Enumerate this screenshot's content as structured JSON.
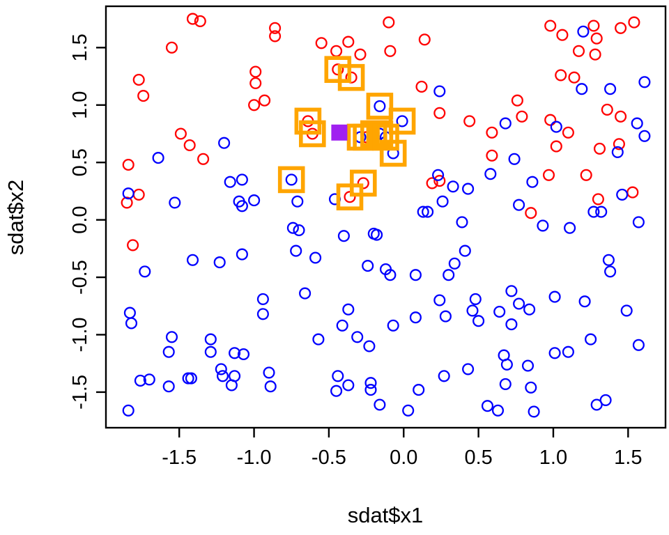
{
  "figure": {
    "background": "#ffffff",
    "description": "R scatter plot of two classes with k-nearest-neighbour highlight squares around a query point"
  },
  "colors": {
    "class_red": "#ff0000",
    "class_blue": "#0000ff",
    "neighbor_highlight": "#ffa500",
    "query_point": "#a020f0",
    "axis": "#000000"
  },
  "chart_data": {
    "type": "scatter",
    "title": "",
    "xlabel": "sdat$x1",
    "ylabel": "sdat$x2",
    "xlim": [
      -1.99,
      1.75
    ],
    "ylim": [
      -1.81,
      1.86
    ],
    "grid": false,
    "xticks": [
      {
        "value": -1.5,
        "label": "-1.5"
      },
      {
        "value": -1.0,
        "label": "-1.0"
      },
      {
        "value": -0.5,
        "label": "-0.5"
      },
      {
        "value": 0.0,
        "label": "0.0"
      },
      {
        "value": 0.5,
        "label": "0.5"
      },
      {
        "value": 1.0,
        "label": "1.0"
      },
      {
        "value": 1.5,
        "label": "1.5"
      }
    ],
    "yticks": [
      {
        "value": -1.5,
        "label": "-1.5"
      },
      {
        "value": -1.0,
        "label": "-1.0"
      },
      {
        "value": -0.5,
        "label": "-0.5"
      },
      {
        "value": 0.0,
        "label": "0.0"
      },
      {
        "value": 0.5,
        "label": "0.5"
      },
      {
        "value": 1.0,
        "label": "1.0"
      },
      {
        "value": 1.5,
        "label": "1.5"
      }
    ],
    "series": [
      {
        "name": "class-red",
        "marker": "open-circle",
        "color": "#ff0000",
        "points": [
          [
            -1.41,
            1.75
          ],
          [
            -1.36,
            1.73
          ],
          [
            -1.55,
            1.5
          ],
          [
            -0.86,
            1.67
          ],
          [
            -0.86,
            1.6
          ],
          [
            -1.77,
            1.22
          ],
          [
            -1.74,
            1.08
          ],
          [
            -0.99,
            1.29
          ],
          [
            -0.99,
            1.19
          ],
          [
            -1.0,
            1.0
          ],
          [
            -0.93,
            1.04
          ],
          [
            -1.49,
            0.75
          ],
          [
            -1.43,
            0.65
          ],
          [
            -0.1,
            1.72
          ],
          [
            -0.55,
            1.54
          ],
          [
            -0.37,
            1.55
          ],
          [
            -0.45,
            1.47
          ],
          [
            -0.29,
            1.44
          ],
          [
            -0.09,
            1.47
          ],
          [
            0.14,
            1.57
          ],
          [
            0.12,
            1.16
          ],
          [
            0.24,
            0.93
          ],
          [
            0.44,
            0.86
          ],
          [
            0.98,
            1.69
          ],
          [
            1.06,
            1.61
          ],
          [
            1.27,
            1.69
          ],
          [
            1.29,
            1.58
          ],
          [
            1.45,
            1.67
          ],
          [
            1.54,
            1.72
          ],
          [
            1.17,
            1.47
          ],
          [
            1.28,
            1.44
          ],
          [
            1.05,
            1.26
          ],
          [
            1.14,
            1.24
          ],
          [
            0.76,
            1.04
          ],
          [
            0.79,
            0.9
          ],
          [
            0.59,
            0.76
          ],
          [
            0.98,
            0.87
          ],
          [
            1.1,
            0.76
          ],
          [
            1.36,
            0.96
          ],
          [
            1.45,
            0.9
          ],
          [
            1.02,
            0.64
          ],
          [
            1.31,
            0.62
          ],
          [
            1.44,
            0.66
          ],
          [
            -1.34,
            0.53
          ],
          [
            -1.84,
            0.48
          ],
          [
            -1.77,
            0.22
          ],
          [
            -1.85,
            0.15
          ],
          [
            -1.81,
            -0.22
          ],
          [
            0.19,
            0.32
          ],
          [
            0.24,
            0.34
          ],
          [
            0.59,
            0.56
          ],
          [
            0.97,
            0.39
          ],
          [
            1.22,
            0.39
          ],
          [
            1.53,
            0.24
          ],
          [
            1.3,
            0.18
          ],
          [
            0.85,
            0.06
          ],
          [
            -0.44,
            1.31
          ],
          [
            -0.35,
            1.24
          ],
          [
            -0.27,
            0.32
          ],
          [
            -0.36,
            0.2
          ],
          [
            -0.64,
            0.86
          ],
          [
            -0.61,
            0.75
          ],
          [
            -0.25,
            0.72
          ]
        ]
      },
      {
        "name": "class-blue",
        "marker": "open-circle",
        "color": "#0000ff",
        "points": [
          [
            -1.2,
            0.67
          ],
          [
            0.24,
            1.12
          ],
          [
            1.2,
            1.64
          ],
          [
            1.19,
            1.14
          ],
          [
            1.38,
            1.14
          ],
          [
            1.61,
            1.2
          ],
          [
            0.68,
            0.84
          ],
          [
            1.02,
            0.81
          ],
          [
            1.56,
            0.84
          ],
          [
            1.61,
            0.73
          ],
          [
            1.43,
            0.59
          ],
          [
            -1.64,
            0.54
          ],
          [
            -1.16,
            0.33
          ],
          [
            -1.08,
            0.35
          ],
          [
            -1.84,
            0.23
          ],
          [
            -1.53,
            0.15
          ],
          [
            -1.1,
            0.16
          ],
          [
            -1.08,
            0.12
          ],
          [
            -1.0,
            0.17
          ],
          [
            -1.73,
            -0.45
          ],
          [
            -1.41,
            -0.35
          ],
          [
            -1.23,
            -0.37
          ],
          [
            -1.08,
            -0.3
          ],
          [
            -0.46,
            0.18
          ],
          [
            -0.71,
            0.16
          ],
          [
            0.23,
            0.39
          ],
          [
            0.33,
            0.29
          ],
          [
            0.43,
            0.27
          ],
          [
            0.26,
            0.16
          ],
          [
            0.13,
            0.07
          ],
          [
            0.16,
            0.07
          ],
          [
            0.39,
            -0.02
          ],
          [
            -0.74,
            -0.07
          ],
          [
            -0.7,
            -0.09
          ],
          [
            -0.4,
            -0.14
          ],
          [
            -0.2,
            -0.12
          ],
          [
            -0.18,
            -0.13
          ],
          [
            -0.72,
            -0.27
          ],
          [
            -0.59,
            -0.33
          ],
          [
            -0.24,
            -0.4
          ],
          [
            -0.12,
            -0.43
          ],
          [
            -0.09,
            -0.48
          ],
          [
            0.08,
            -0.48
          ],
          [
            0.34,
            -0.38
          ],
          [
            0.3,
            -0.48
          ],
          [
            0.41,
            -0.27
          ],
          [
            0.74,
            0.53
          ],
          [
            0.58,
            0.4
          ],
          [
            0.86,
            0.33
          ],
          [
            1.46,
            0.22
          ],
          [
            1.27,
            0.07
          ],
          [
            1.32,
            0.07
          ],
          [
            0.77,
            0.13
          ],
          [
            0.93,
            -0.05
          ],
          [
            1.11,
            -0.07
          ],
          [
            1.57,
            -0.02
          ],
          [
            1.37,
            -0.35
          ],
          [
            1.38,
            -0.45
          ],
          [
            -1.83,
            -0.81
          ],
          [
            -1.82,
            -0.9
          ],
          [
            -0.94,
            -0.69
          ],
          [
            -0.94,
            -0.82
          ],
          [
            -1.55,
            -1.02
          ],
          [
            -1.57,
            -1.15
          ],
          [
            -1.29,
            -1.04
          ],
          [
            -1.29,
            -1.15
          ],
          [
            -1.13,
            -1.16
          ],
          [
            -1.07,
            -1.17
          ],
          [
            -1.22,
            -1.3
          ],
          [
            -1.21,
            -1.36
          ],
          [
            -1.13,
            -1.36
          ],
          [
            -1.15,
            -1.44
          ],
          [
            -1.76,
            -1.4
          ],
          [
            -1.7,
            -1.39
          ],
          [
            -1.57,
            -1.45
          ],
          [
            -1.44,
            -1.38
          ],
          [
            -1.42,
            -1.38
          ],
          [
            -0.9,
            -1.33
          ],
          [
            -0.89,
            -1.45
          ],
          [
            -1.84,
            -1.66
          ],
          [
            -0.66,
            -0.64
          ],
          [
            -0.37,
            -0.78
          ],
          [
            -0.41,
            -0.92
          ],
          [
            -0.57,
            -1.04
          ],
          [
            -0.31,
            -1.02
          ],
          [
            -0.23,
            -1.1
          ],
          [
            -0.07,
            -0.92
          ],
          [
            0.08,
            -0.85
          ],
          [
            0.24,
            -0.7
          ],
          [
            0.28,
            -0.84
          ],
          [
            0.48,
            -0.69
          ],
          [
            0.46,
            -0.79
          ],
          [
            0.5,
            -0.88
          ],
          [
            -0.44,
            -1.36
          ],
          [
            -0.45,
            -1.49
          ],
          [
            -0.37,
            -1.44
          ],
          [
            -0.22,
            -1.42
          ],
          [
            -0.22,
            -1.48
          ],
          [
            -0.16,
            -1.61
          ],
          [
            0.03,
            -1.66
          ],
          [
            0.1,
            -1.48
          ],
          [
            0.27,
            -1.36
          ],
          [
            0.43,
            -1.3
          ],
          [
            0.72,
            -0.62
          ],
          [
            0.77,
            -0.73
          ],
          [
            0.64,
            -0.8
          ],
          [
            0.84,
            -0.78
          ],
          [
            0.72,
            -0.91
          ],
          [
            1.01,
            -0.67
          ],
          [
            1.21,
            -0.71
          ],
          [
            1.49,
            -0.79
          ],
          [
            1.25,
            -1.04
          ],
          [
            1.57,
            -1.09
          ],
          [
            1.01,
            -1.16
          ],
          [
            1.1,
            -1.15
          ],
          [
            0.67,
            -1.18
          ],
          [
            0.69,
            -1.26
          ],
          [
            0.83,
            -1.27
          ],
          [
            0.68,
            -1.43
          ],
          [
            0.85,
            -1.46
          ],
          [
            0.56,
            -1.62
          ],
          [
            0.63,
            -1.66
          ],
          [
            0.87,
            -1.67
          ],
          [
            1.29,
            -1.61
          ],
          [
            1.35,
            -1.57
          ],
          [
            -0.16,
            0.99
          ],
          [
            -0.01,
            0.86
          ],
          [
            -0.07,
            0.58
          ],
          [
            -0.75,
            0.35
          ],
          [
            -0.29,
            0.72
          ],
          [
            -0.2,
            0.75
          ],
          [
            -0.16,
            0.75
          ],
          [
            -0.12,
            0.72
          ]
        ]
      }
    ],
    "highlights": {
      "name": "knn-neighbor-squares",
      "marker": "open-square",
      "color": "#ffa500",
      "count": 15,
      "points": [
        [
          -0.44,
          1.31
        ],
        [
          -0.35,
          1.24
        ],
        [
          -0.16,
          0.99
        ],
        [
          -0.01,
          0.86
        ],
        [
          -0.07,
          0.58
        ],
        [
          -0.75,
          0.35
        ],
        [
          -0.27,
          0.32
        ],
        [
          -0.36,
          0.2
        ],
        [
          -0.64,
          0.86
        ],
        [
          -0.61,
          0.75
        ],
        [
          -0.29,
          0.72
        ],
        [
          -0.25,
          0.72
        ],
        [
          -0.2,
          0.75
        ],
        [
          -0.16,
          0.75
        ],
        [
          -0.12,
          0.72
        ]
      ]
    },
    "query_point": {
      "name": "query-point",
      "marker": "filled-square",
      "color": "#a020f0",
      "x": -0.43,
      "y": 0.76
    },
    "legend": null
  }
}
